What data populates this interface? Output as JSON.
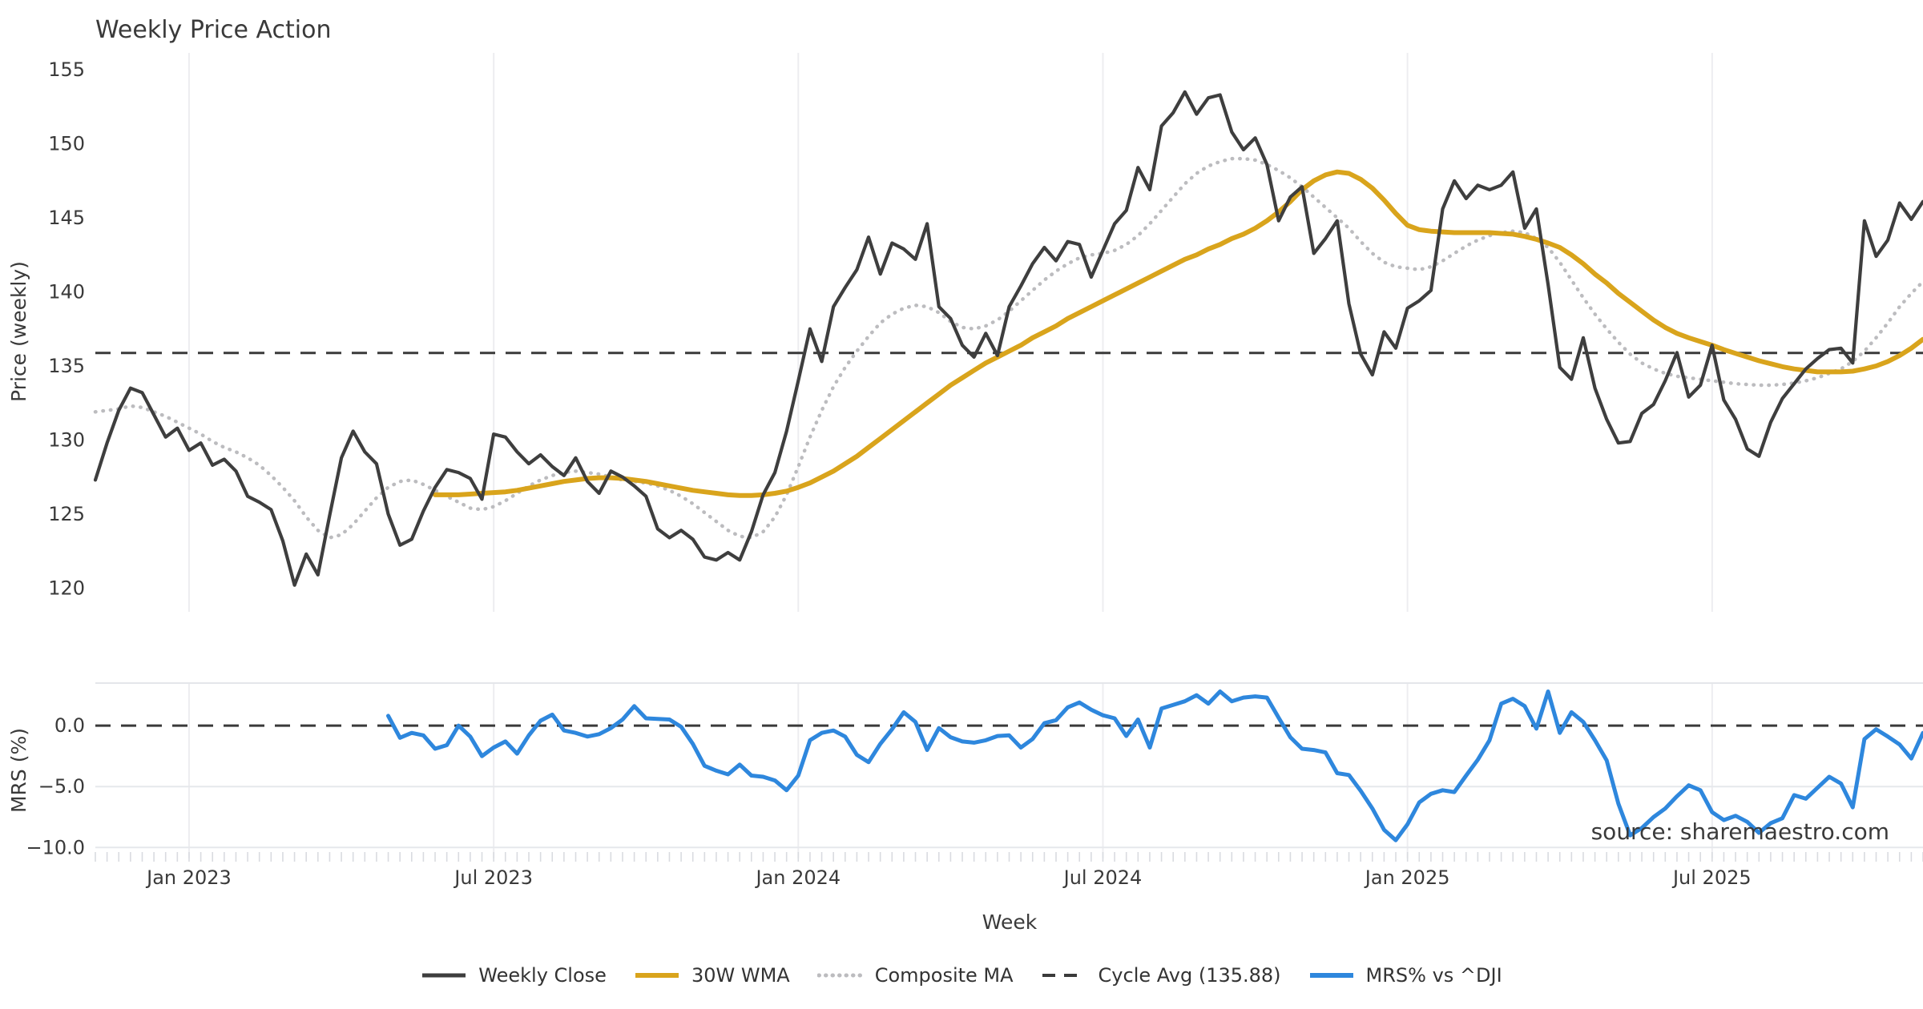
{
  "page": {
    "title": "Weekly Price Action",
    "watermark": "source: sharemaestro.com"
  },
  "legend": [
    {
      "label": "Weekly Close",
      "color": "#3e3e3e",
      "dash": "",
      "width": 5
    },
    {
      "label": "30W WMA",
      "color": "#d9a41c",
      "dash": "",
      "width": 6
    },
    {
      "label": "Composite MA",
      "color": "#bcbcbf",
      "dash": "0.5 8",
      "width": 5
    },
    {
      "label": "Cycle Avg (135.88)",
      "color": "#3a3a3a",
      "dash": "16 11",
      "width": 4
    },
    {
      "label": "MRS% vs ^DJI",
      "color": "#2e87dd",
      "dash": "",
      "width": 6
    }
  ],
  "chart_data": [
    {
      "panel": "price",
      "type": "line",
      "title": "Weekly Price Action",
      "ylabel": "Price (weekly)",
      "xlabel": "Week",
      "ylim": [
        156.14,
        118.4
      ],
      "yticks": [
        155,
        150,
        145,
        140,
        135,
        130,
        125,
        120
      ],
      "x_range_weeks": [
        0,
        156
      ],
      "xticks": [
        {
          "week": 8,
          "label": "Jan 2023"
        },
        {
          "week": 34,
          "label": "Jul 2023"
        },
        {
          "week": 60,
          "label": "Jan 2024"
        },
        {
          "week": 86,
          "label": "Jul 2024"
        },
        {
          "week": 112,
          "label": "Jan 2025"
        },
        {
          "week": 138,
          "label": "Jul 2025"
        }
      ],
      "grid": "vertical-only",
      "hline": {
        "name": "Cycle Avg",
        "value": 135.88,
        "color": "#3a3a3a",
        "dash": "19 13",
        "width": 3
      },
      "series": [
        {
          "name": "Weekly Close",
          "color": "#3e3e3e",
          "style": "solid",
          "width": 4.2,
          "start_week": 0,
          "values": [
            127.3,
            129.8,
            132.0,
            133.5,
            133.2,
            131.7,
            130.2,
            130.8,
            129.3,
            129.8,
            128.3,
            128.7,
            127.9,
            126.2,
            125.8,
            125.3,
            123.2,
            120.2,
            122.3,
            120.9,
            124.9,
            128.8,
            130.6,
            129.2,
            128.4,
            125.0,
            122.9,
            123.3,
            125.2,
            126.8,
            128.0,
            127.8,
            127.4,
            126.0,
            130.4,
            130.2,
            129.2,
            128.4,
            129.0,
            128.2,
            127.6,
            128.8,
            127.2,
            126.4,
            127.9,
            127.5,
            126.9,
            126.2,
            124.0,
            123.4,
            123.9,
            123.3,
            122.1,
            121.9,
            122.4,
            121.9,
            123.8,
            126.3,
            127.8,
            130.6,
            134.0,
            137.5,
            135.3,
            139.0,
            140.3,
            141.5,
            143.7,
            141.2,
            143.3,
            142.9,
            142.2,
            144.6,
            139.0,
            138.2,
            136.4,
            135.6,
            137.2,
            135.7,
            139.0,
            140.4,
            141.9,
            143.0,
            142.1,
            143.4,
            143.2,
            141.0,
            142.8,
            144.6,
            145.5,
            148.4,
            146.9,
            151.2,
            152.1,
            153.5,
            152.0,
            153.1,
            153.3,
            150.8,
            149.6,
            150.4,
            148.6,
            144.8,
            146.4,
            147.1,
            142.6,
            143.6,
            144.8,
            139.2,
            135.8,
            134.4,
            137.3,
            136.2,
            138.9,
            139.4,
            140.1,
            145.6,
            147.5,
            146.3,
            147.2,
            146.9,
            147.2,
            148.1,
            144.3,
            145.6,
            140.5,
            134.9,
            134.1,
            136.9,
            133.5,
            131.4,
            129.8,
            129.9,
            131.8,
            132.4,
            134.0,
            135.9,
            132.9,
            133.7,
            136.4,
            132.7,
            131.4,
            129.4,
            128.9,
            131.2,
            132.8,
            133.8,
            134.8,
            135.5,
            136.1,
            136.2,
            135.2,
            144.8,
            142.4,
            143.5,
            146.0,
            144.9,
            146.1
          ]
        },
        {
          "name": "30W WMA",
          "color": "#d9a41c",
          "style": "solid",
          "width": 6,
          "start_week": 29,
          "values": [
            126.3,
            126.3,
            126.3,
            126.35,
            126.4,
            126.45,
            126.5,
            126.6,
            126.75,
            126.9,
            127.05,
            127.2,
            127.3,
            127.4,
            127.45,
            127.45,
            127.4,
            127.3,
            127.2,
            127.05,
            126.9,
            126.75,
            126.6,
            126.5,
            126.4,
            126.3,
            126.25,
            126.25,
            126.3,
            126.4,
            126.55,
            126.8,
            127.1,
            127.5,
            127.9,
            128.4,
            128.9,
            129.5,
            130.1,
            130.7,
            131.3,
            131.9,
            132.5,
            133.1,
            133.7,
            134.2,
            134.7,
            135.2,
            135.6,
            136.0,
            136.4,
            136.9,
            137.3,
            137.7,
            138.2,
            138.6,
            139.0,
            139.4,
            139.8,
            140.2,
            140.6,
            141.0,
            141.4,
            141.8,
            142.2,
            142.5,
            142.9,
            143.2,
            143.6,
            143.9,
            144.3,
            144.8,
            145.4,
            146.1,
            146.9,
            147.5,
            147.9,
            148.1,
            148.0,
            147.6,
            147.0,
            146.2,
            145.3,
            144.5,
            144.2,
            144.1,
            144.05,
            144.0,
            144.0,
            144.0,
            144.0,
            143.95,
            143.9,
            143.75,
            143.55,
            143.3,
            143.0,
            142.5,
            141.9,
            141.2,
            140.6,
            139.9,
            139.3,
            138.7,
            138.1,
            137.6,
            137.2,
            136.9,
            136.65,
            136.4,
            136.1,
            135.85,
            135.6,
            135.35,
            135.15,
            134.95,
            134.8,
            134.7,
            134.6,
            134.6,
            134.6,
            134.65,
            134.8,
            135.0,
            135.3,
            135.7,
            136.2,
            136.8
          ]
        },
        {
          "name": "Composite MA",
          "color": "#bcbcbf",
          "style": "dotted",
          "width": 4.5,
          "start_week": 0,
          "values": [
            131.9,
            132.0,
            132.1,
            132.3,
            132.2,
            131.9,
            131.6,
            131.2,
            130.8,
            130.4,
            129.9,
            129.5,
            129.2,
            128.8,
            128.3,
            127.6,
            126.8,
            125.9,
            124.8,
            123.9,
            123.4,
            123.6,
            124.3,
            125.2,
            126.1,
            126.8,
            127.2,
            127.3,
            127.0,
            126.6,
            126.2,
            125.8,
            125.4,
            125.3,
            125.5,
            125.9,
            126.4,
            126.9,
            127.3,
            127.6,
            127.8,
            127.9,
            127.8,
            127.7,
            127.5,
            127.3,
            127.2,
            127.1,
            126.9,
            126.6,
            126.2,
            125.7,
            125.1,
            124.5,
            123.9,
            123.5,
            123.4,
            123.8,
            124.8,
            126.3,
            128.2,
            130.2,
            132.0,
            133.6,
            134.9,
            136.0,
            137.0,
            137.9,
            138.5,
            138.9,
            139.1,
            139.0,
            138.6,
            138.0,
            137.6,
            137.5,
            137.7,
            138.1,
            138.7,
            139.4,
            140.1,
            140.8,
            141.4,
            141.9,
            142.3,
            142.5,
            142.6,
            142.8,
            143.2,
            143.8,
            144.6,
            145.5,
            146.4,
            147.3,
            148.0,
            148.5,
            148.8,
            149.0,
            149.0,
            148.9,
            148.6,
            148.2,
            147.7,
            147.1,
            146.4,
            145.7,
            145.0,
            144.3,
            143.4,
            142.6,
            142.0,
            141.7,
            141.6,
            141.5,
            141.7,
            142.1,
            142.6,
            143.1,
            143.5,
            143.8,
            144.0,
            144.1,
            144.0,
            143.6,
            143.0,
            142.0,
            140.8,
            139.6,
            138.5,
            137.5,
            136.6,
            135.8,
            135.2,
            134.8,
            134.5,
            134.3,
            134.2,
            134.1,
            134.0,
            133.9,
            133.8,
            133.75,
            133.7,
            133.7,
            133.75,
            133.85,
            134.0,
            134.2,
            134.5,
            134.8,
            135.3,
            136.0,
            136.9,
            137.9,
            139.0,
            139.9,
            140.7
          ]
        }
      ]
    },
    {
      "panel": "mrs",
      "type": "line",
      "ylabel": "MRS (%)",
      "xlabel": "Week",
      "ylim": [
        3.49,
        -10.9
      ],
      "yticks": [
        {
          "v": 0,
          "label": "0.0"
        },
        {
          "v": -5,
          "label": "−5.0"
        },
        {
          "v": -10,
          "label": "−10.0"
        }
      ],
      "grid": "vertical-and-horizontal",
      "zero_line_dashed": true,
      "series": [
        {
          "name": "MRS% vs ^DJI",
          "color": "#2e87dd",
          "style": "solid",
          "width": 5,
          "start_week": 25,
          "values": [
            0.8,
            -1.0,
            -0.6,
            -0.8,
            -1.9,
            -1.6,
            0.0,
            -0.9,
            -2.5,
            -1.8,
            -1.3,
            -2.3,
            -0.8,
            0.4,
            0.9,
            -0.4,
            -0.6,
            -0.9,
            -0.7,
            -0.2,
            0.5,
            1.6,
            0.6,
            0.55,
            0.5,
            -0.1,
            -1.5,
            -3.3,
            -3.7,
            -4.0,
            -3.2,
            -4.1,
            -4.2,
            -4.5,
            -5.3,
            -4.1,
            -1.2,
            -0.6,
            -0.4,
            -0.9,
            -2.4,
            -3.0,
            -1.5,
            -0.3,
            1.1,
            0.3,
            -2.0,
            -0.2,
            -0.95,
            -1.3,
            -1.4,
            -1.2,
            -0.85,
            -0.8,
            -1.8,
            -1.1,
            0.2,
            0.45,
            1.5,
            1.9,
            1.3,
            0.85,
            0.6,
            -0.85,
            0.5,
            -1.8,
            1.4,
            1.7,
            2.0,
            2.5,
            1.8,
            2.8,
            2.0,
            2.3,
            2.4,
            2.3,
            0.65,
            -0.95,
            -1.9,
            -2.0,
            -2.2,
            -3.9,
            -4.05,
            -5.35,
            -6.8,
            -8.55,
            -9.4,
            -8.1,
            -6.3,
            -5.6,
            -5.3,
            -5.45,
            -4.1,
            -2.8,
            -1.2,
            1.8,
            2.2,
            1.6,
            -0.25,
            2.8,
            -0.6,
            1.1,
            0.3,
            -1.2,
            -2.85,
            -6.4,
            -9.0,
            -8.4,
            -7.5,
            -6.8,
            -5.8,
            -4.9,
            -5.3,
            -7.1,
            -7.75,
            -7.4,
            -7.9,
            -8.8,
            -8.0,
            -7.6,
            -5.7,
            -6.0,
            -5.1,
            -4.2,
            -4.75,
            -6.7,
            -1.1,
            -0.3,
            -0.9,
            -1.55,
            -2.7,
            -0.6
          ]
        }
      ]
    }
  ]
}
